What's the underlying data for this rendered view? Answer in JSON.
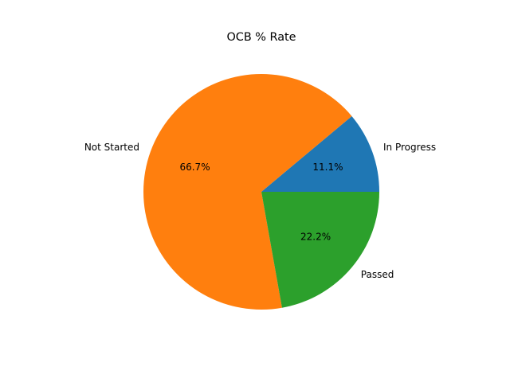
{
  "chart_data": {
    "type": "pie",
    "title": "OCB % Rate",
    "categories": [
      "In Progress",
      "Not Started",
      "Passed"
    ],
    "values": [
      11.1,
      66.7,
      22.2
    ],
    "autopct_labels": [
      "11.1%",
      "66.7%",
      "22.2%"
    ],
    "colors": [
      "#1f77b4",
      "#ff7f0e",
      "#2ca02c"
    ],
    "start_angle_deg": 0,
    "direction": "counterclockwise",
    "legend": "none"
  }
}
